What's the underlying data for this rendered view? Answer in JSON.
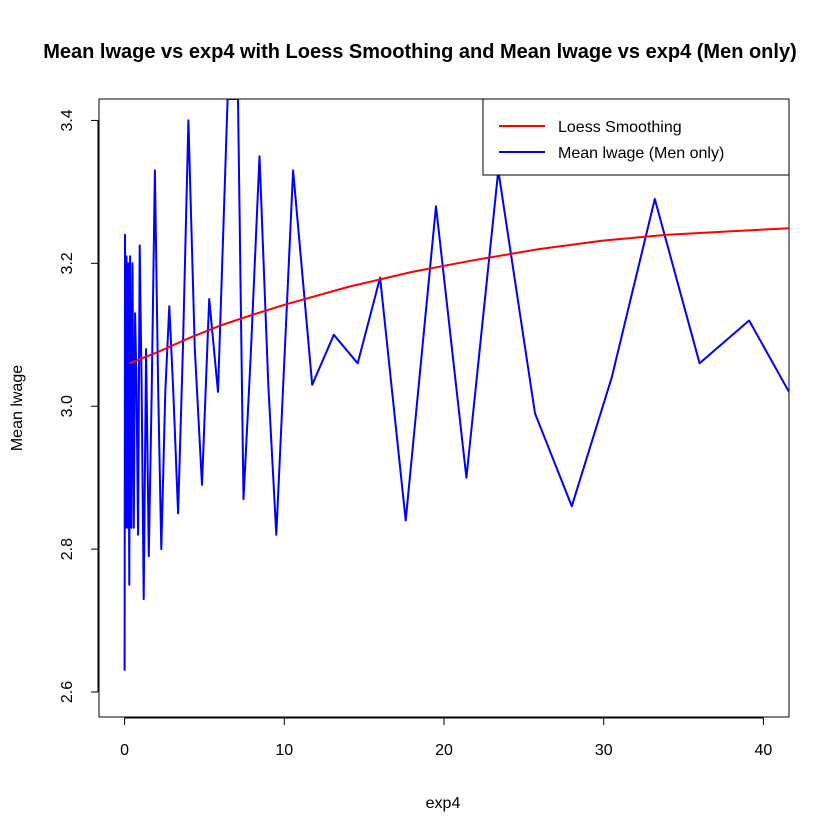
{
  "chart_data": {
    "type": "line",
    "title": "Mean lwage vs exp4 with Loess Smoothing and Mean lwage vs exp4 (Men only)",
    "xlabel": "exp4",
    "ylabel": "Mean lwage",
    "xlim": [
      -1.6,
      41.6
    ],
    "ylim": [
      2.565,
      3.43
    ],
    "x_ticks": [
      0,
      10,
      20,
      30,
      40
    ],
    "y_ticks": [
      2.6,
      2.8,
      3.0,
      3.2,
      3.4
    ],
    "y_tick_labels": [
      "2.6",
      "2.8",
      "3.0",
      "3.2",
      "3.4"
    ],
    "grid": false,
    "legend_position": "top-right",
    "series": [
      {
        "name": "Loess Smoothing",
        "color": "#ff0000",
        "x": [
          0.3,
          2,
          4,
          6,
          8,
          10,
          14,
          18,
          22,
          26,
          30,
          34,
          38,
          41.6
        ],
        "y": [
          3.06,
          3.075,
          3.095,
          3.113,
          3.128,
          3.142,
          3.167,
          3.188,
          3.205,
          3.22,
          3.232,
          3.24,
          3.245,
          3.249
        ]
      },
      {
        "name": "Mean lwage (Men only)",
        "color": "#0000ff",
        "x": [
          0,
          0.03,
          0.08,
          0.12,
          0.18,
          0.22,
          0.3,
          0.35,
          0.42,
          0.5,
          0.58,
          0.66,
          0.75,
          0.85,
          0.95,
          1.07,
          1.2,
          1.35,
          1.52,
          1.7,
          1.9,
          2.1,
          2.3,
          2.55,
          2.8,
          3.05,
          3.35,
          3.65,
          4.0,
          4.4,
          4.85,
          5.3,
          5.85,
          6.45,
          7.1,
          7.45,
          7.9,
          8.45,
          9.0,
          9.5,
          10.55,
          11.75,
          13.1,
          14.6,
          16.0,
          17.6,
          19.5,
          21.4,
          23.4,
          25.7,
          28.0,
          30.5,
          33.2,
          36.0,
          39.1,
          41.6
        ],
        "y": [
          2.63,
          3.24,
          2.83,
          3.21,
          2.83,
          3.2,
          2.75,
          3.21,
          2.83,
          3.2,
          2.83,
          3.13,
          3.03,
          2.82,
          3.225,
          3.03,
          2.73,
          3.08,
          2.79,
          3.02,
          3.33,
          3.03,
          2.8,
          3.02,
          3.14,
          3.02,
          2.85,
          3.08,
          3.4,
          3.08,
          2.89,
          3.15,
          3.02,
          3.43,
          3.43,
          2.87,
          3.07,
          3.35,
          3.03,
          2.82,
          3.33,
          3.03,
          3.1,
          3.06,
          3.18,
          2.84,
          3.28,
          2.9,
          3.33,
          2.99,
          2.86,
          3.04,
          3.29,
          3.06,
          3.12,
          3.02
        ]
      }
    ]
  }
}
